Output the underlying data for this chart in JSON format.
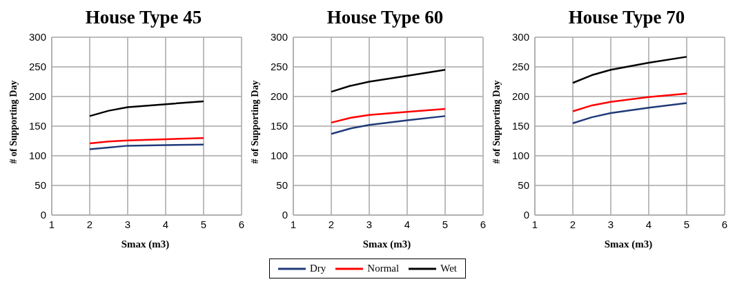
{
  "chart_data": [
    {
      "type": "line",
      "title": "House Type 45",
      "xlabel": "Smax (m3)",
      "ylabel": "# of Supporting Day",
      "x": [
        2,
        2.5,
        3,
        4,
        5
      ],
      "xlim": [
        1,
        6
      ],
      "xticks": [
        1,
        2,
        3,
        4,
        5,
        6
      ],
      "ylim": [
        0,
        300
      ],
      "yticks": [
        0,
        50,
        100,
        150,
        200,
        250,
        300
      ],
      "grid": true,
      "legend": "bottom",
      "marker": "none",
      "line_style": "solid",
      "series": [
        {
          "name": "Dry",
          "color": "#1f3a7a",
          "values": [
            111,
            114,
            117,
            118,
            119
          ]
        },
        {
          "name": "Normal",
          "color": "#ff0000",
          "values": [
            121,
            124,
            126,
            128,
            130
          ]
        },
        {
          "name": "Wet",
          "color": "#000000",
          "values": [
            167,
            176,
            182,
            187,
            192
          ]
        }
      ]
    },
    {
      "type": "line",
      "title": "House Type 60",
      "xlabel": "Smax (m3)",
      "ylabel": "# of Supporting Day",
      "x": [
        2,
        2.5,
        3,
        4,
        5
      ],
      "xlim": [
        1,
        6
      ],
      "xticks": [
        1,
        2,
        3,
        4,
        5,
        6
      ],
      "ylim": [
        0,
        300
      ],
      "yticks": [
        0,
        50,
        100,
        150,
        200,
        250,
        300
      ],
      "grid": true,
      "marker": "none",
      "line_style": "solid",
      "series": [
        {
          "color": "#1f3a7a",
          "values": [
            137,
            146,
            152,
            160,
            167
          ]
        },
        {
          "color": "#ff0000",
          "values": [
            156,
            164,
            169,
            174,
            179
          ]
        },
        {
          "color": "#000000",
          "values": [
            208,
            218,
            225,
            235,
            245
          ]
        }
      ]
    },
    {
      "type": "line",
      "title": "House Type 70",
      "xlabel": "Smax (m3)",
      "ylabel": "# of Supporting Day",
      "x": [
        2,
        2.5,
        3,
        4,
        5
      ],
      "xlim": [
        1,
        6
      ],
      "xticks": [
        1,
        2,
        3,
        4,
        5,
        6
      ],
      "ylim": [
        0,
        300
      ],
      "yticks": [
        0,
        50,
        100,
        150,
        200,
        250,
        300
      ],
      "grid": true,
      "marker": "none",
      "line_style": "solid",
      "series": [
        {
          "color": "#1f3a7a",
          "values": [
            155,
            165,
            172,
            181,
            189
          ]
        },
        {
          "color": "#ff0000",
          "values": [
            175,
            185,
            191,
            199,
            205
          ]
        },
        {
          "color": "#000000",
          "values": [
            223,
            236,
            245,
            257,
            267
          ]
        }
      ]
    }
  ]
}
